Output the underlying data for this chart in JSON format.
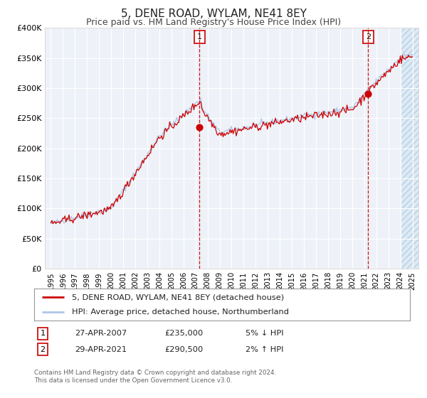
{
  "title": "5, DENE ROAD, WYLAM, NE41 8EY",
  "subtitle": "Price paid vs. HM Land Registry's House Price Index (HPI)",
  "ylim": [
    0,
    400000
  ],
  "yticks": [
    0,
    50000,
    100000,
    150000,
    200000,
    250000,
    300000,
    350000,
    400000
  ],
  "ytick_labels": [
    "£0",
    "£50K",
    "£100K",
    "£150K",
    "£200K",
    "£250K",
    "£300K",
    "£350K",
    "£400K"
  ],
  "xlim_start": 1994.5,
  "xlim_end": 2025.5,
  "xticks": [
    1995,
    1996,
    1997,
    1998,
    1999,
    2000,
    2001,
    2002,
    2003,
    2004,
    2005,
    2006,
    2007,
    2008,
    2009,
    2010,
    2011,
    2012,
    2013,
    2014,
    2015,
    2016,
    2017,
    2018,
    2019,
    2020,
    2021,
    2022,
    2023,
    2024,
    2025
  ],
  "sale1_x": 2007.32,
  "sale1_y": 235000,
  "sale1_label": "1",
  "sale1_date": "27-APR-2007",
  "sale1_price": "£235,000",
  "sale1_hpi": "5% ↓ HPI",
  "sale2_x": 2021.32,
  "sale2_y": 290500,
  "sale2_label": "2",
  "sale2_date": "29-APR-2021",
  "sale2_price": "£290,500",
  "sale2_hpi": "2% ↑ HPI",
  "price_color": "#cc0000",
  "hpi_color": "#aec6e8",
  "sale_dot_color": "#cc0000",
  "legend_label_price": "5, DENE ROAD, WYLAM, NE41 8EY (detached house)",
  "legend_label_hpi": "HPI: Average price, detached house, Northumberland",
  "footer1": "Contains HM Land Registry data © Crown copyright and database right 2024.",
  "footer2": "This data is licensed under the Open Government Licence v3.0.",
  "bg_color": "#ffffff",
  "plot_bg_color": "#eef2f8",
  "grid_color": "#ffffff",
  "title_fontsize": 11,
  "subtitle_fontsize": 9
}
